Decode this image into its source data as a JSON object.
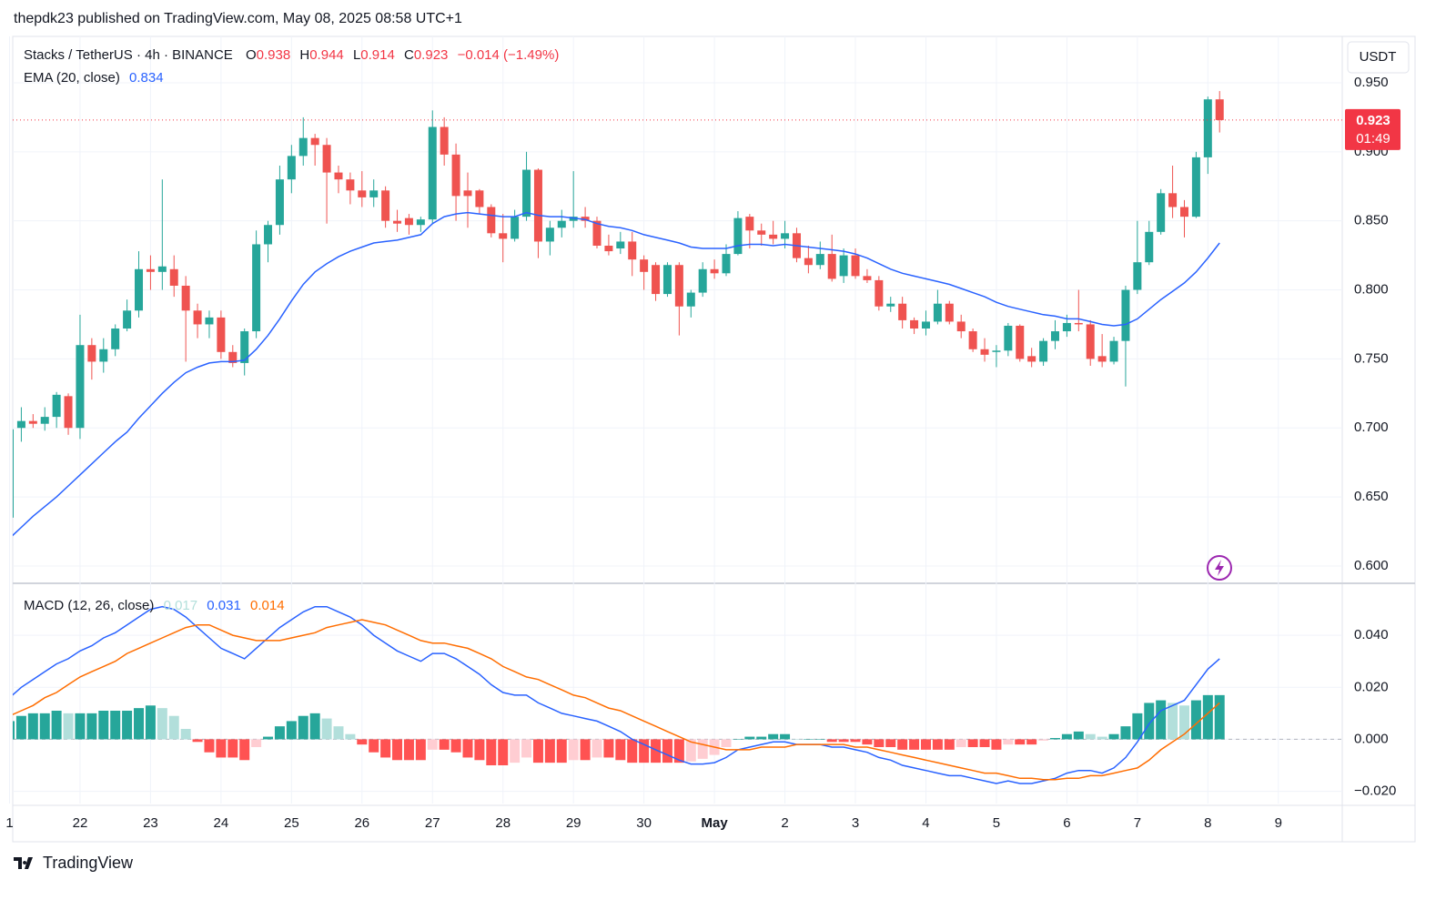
{
  "header": {
    "publisher": "thepdk23 published on TradingView.com, May 08, 2025 08:58 UTC+1"
  },
  "footer": {
    "brand": "TradingView"
  },
  "chart_data": [
    {
      "type": "candlestick",
      "title": "Stacks / TetherUS · 4h · BINANCE",
      "ohlc_keys": [
        "O",
        "H",
        "L",
        "C"
      ],
      "change": "−0.014 (−1.49%)",
      "currency": "USDT",
      "countdown": "01:49",
      "up_color": "#26a69a",
      "down_color": "#ef5350",
      "last_price_color": "#f23645",
      "grid": true,
      "ylim": [
        0.5881,
        0.9836
      ],
      "yticks": [
        {
          "value": 0.95,
          "label": "0.950"
        },
        {
          "value": 0.9,
          "label": "0.900"
        },
        {
          "value": 0.85,
          "label": "0.850"
        },
        {
          "value": 0.8,
          "label": "0.800"
        },
        {
          "value": 0.75,
          "label": "0.750"
        },
        {
          "value": 0.7,
          "label": "0.700"
        },
        {
          "value": 0.65,
          "label": "0.650"
        },
        {
          "value": 0.6,
          "label": "0.600"
        }
      ],
      "categories": [
        "1",
        null,
        null,
        null,
        null,
        null,
        "22",
        null,
        null,
        null,
        null,
        null,
        "23",
        null,
        null,
        null,
        null,
        null,
        "24",
        null,
        null,
        null,
        null,
        null,
        "25",
        null,
        null,
        null,
        null,
        null,
        "26",
        null,
        null,
        null,
        null,
        null,
        "27",
        null,
        null,
        null,
        null,
        null,
        "28",
        null,
        null,
        null,
        null,
        null,
        "29",
        null,
        null,
        null,
        null,
        null,
        "30",
        null,
        null,
        null,
        null,
        null,
        "May",
        null,
        null,
        null,
        null,
        null,
        "2",
        null,
        null,
        null,
        null,
        null,
        "3",
        null,
        null,
        null,
        null,
        null,
        "4",
        null,
        null,
        null,
        null,
        null,
        "5",
        null,
        null,
        null,
        null,
        null,
        "6",
        null,
        null,
        null,
        null,
        null,
        "7",
        null,
        null,
        null,
        null,
        null,
        "8",
        null,
        null,
        null,
        null,
        null,
        "9"
      ],
      "open": [
        0.635,
        0.7,
        0.705,
        0.703,
        0.708,
        0.723,
        0.7,
        0.76,
        0.748,
        0.757,
        0.772,
        0.785,
        0.815,
        0.813,
        0.815,
        0.803,
        0.785,
        0.775,
        0.78,
        0.755,
        0.747,
        0.77,
        0.833,
        0.847,
        0.88,
        0.897,
        0.91,
        0.905,
        0.885,
        0.88,
        0.872,
        0.867,
        0.872,
        0.85,
        0.852,
        0.847,
        0.851,
        0.918,
        0.898,
        0.872,
        0.872,
        0.86,
        0.841,
        0.837,
        0.853,
        0.887,
        0.835,
        0.845,
        0.85,
        0.853,
        0.85,
        0.832,
        0.83,
        0.835,
        0.822,
        0.818,
        0.797,
        0.818,
        0.788,
        0.798,
        0.815,
        0.812,
        0.826,
        0.853,
        0.843,
        0.84,
        0.837,
        0.841,
        0.823,
        0.818,
        0.826,
        0.81,
        0.825,
        0.81,
        0.807,
        0.788,
        0.79,
        0.778,
        0.772,
        0.777,
        0.79,
        0.777,
        0.77,
        0.757,
        0.755,
        0.756,
        0.774,
        0.752,
        0.748,
        0.763,
        0.77,
        0.776,
        0.775,
        0.752,
        0.748,
        0.763,
        0.8,
        0.82,
        0.842,
        0.87,
        0.86,
        0.853,
        0.896,
        0.938,
        null,
        null,
        null,
        null,
        null
      ],
      "high": [
        0.7,
        0.715,
        0.71,
        0.715,
        0.726,
        0.725,
        0.782,
        0.765,
        0.765,
        0.775,
        0.793,
        0.828,
        0.825,
        0.88,
        0.825,
        0.81,
        0.79,
        0.785,
        0.785,
        0.76,
        0.772,
        0.843,
        0.85,
        0.89,
        0.905,
        0.925,
        0.913,
        0.91,
        0.89,
        0.885,
        0.886,
        0.88,
        0.875,
        0.858,
        0.855,
        0.853,
        0.93,
        0.925,
        0.906,
        0.885,
        0.873,
        0.862,
        0.855,
        0.858,
        0.9,
        0.888,
        0.85,
        0.858,
        0.886,
        0.86,
        0.853,
        0.84,
        0.842,
        0.842,
        0.825,
        0.82,
        0.82,
        0.82,
        0.8,
        0.82,
        0.822,
        0.833,
        0.857,
        0.855,
        0.848,
        0.85,
        0.85,
        0.845,
        0.832,
        0.835,
        0.84,
        0.83,
        0.83,
        0.815,
        0.81,
        0.795,
        0.795,
        0.78,
        0.785,
        0.8,
        0.792,
        0.782,
        0.772,
        0.765,
        0.76,
        0.776,
        0.775,
        0.758,
        0.765,
        0.778,
        0.782,
        0.8,
        0.778,
        0.768,
        0.766,
        0.803,
        0.85,
        0.85,
        0.873,
        0.89,
        0.865,
        0.9,
        0.94,
        0.944,
        null,
        null,
        null,
        null,
        null
      ],
      "low": [
        0.633,
        0.69,
        0.7,
        0.698,
        0.7,
        0.695,
        0.692,
        0.735,
        0.74,
        0.752,
        0.77,
        0.78,
        0.8,
        0.8,
        0.795,
        0.748,
        0.765,
        0.765,
        0.75,
        0.744,
        0.738,
        0.765,
        0.82,
        0.84,
        0.87,
        0.89,
        0.89,
        0.848,
        0.87,
        0.862,
        0.86,
        0.86,
        0.845,
        0.842,
        0.84,
        0.842,
        0.848,
        0.89,
        0.85,
        0.845,
        0.855,
        0.838,
        0.82,
        0.835,
        0.85,
        0.823,
        0.825,
        0.838,
        0.845,
        0.845,
        0.83,
        0.825,
        0.826,
        0.81,
        0.8,
        0.792,
        0.795,
        0.767,
        0.78,
        0.795,
        0.808,
        0.81,
        0.825,
        0.83,
        0.832,
        0.833,
        0.83,
        0.82,
        0.812,
        0.815,
        0.806,
        0.805,
        0.808,
        0.805,
        0.785,
        0.784,
        0.772,
        0.768,
        0.767,
        0.775,
        0.775,
        0.765,
        0.755,
        0.748,
        0.744,
        0.752,
        0.748,
        0.744,
        0.745,
        0.757,
        0.766,
        0.77,
        0.745,
        0.744,
        0.746,
        0.73,
        0.797,
        0.818,
        0.84,
        0.852,
        0.838,
        0.852,
        0.884,
        0.914,
        null,
        null,
        null,
        null,
        null
      ],
      "close": [
        0.699,
        0.705,
        0.703,
        0.708,
        0.724,
        0.7,
        0.76,
        0.748,
        0.757,
        0.772,
        0.785,
        0.815,
        0.813,
        0.817,
        0.803,
        0.785,
        0.775,
        0.78,
        0.755,
        0.747,
        0.77,
        0.833,
        0.847,
        0.88,
        0.897,
        0.91,
        0.905,
        0.885,
        0.88,
        0.872,
        0.867,
        0.872,
        0.85,
        0.848,
        0.847,
        0.851,
        0.918,
        0.898,
        0.868,
        0.868,
        0.86,
        0.841,
        0.837,
        0.853,
        0.887,
        0.835,
        0.845,
        0.85,
        0.853,
        0.85,
        0.832,
        0.828,
        0.835,
        0.822,
        0.813,
        0.797,
        0.818,
        0.788,
        0.798,
        0.815,
        0.812,
        0.826,
        0.852,
        0.843,
        0.84,
        0.837,
        0.841,
        0.823,
        0.818,
        0.826,
        0.808,
        0.825,
        0.81,
        0.807,
        0.788,
        0.79,
        0.778,
        0.772,
        0.777,
        0.79,
        0.777,
        0.77,
        0.757,
        0.753,
        0.756,
        0.774,
        0.75,
        0.748,
        0.763,
        0.77,
        0.776,
        0.775,
        0.75,
        0.748,
        0.763,
        0.8,
        0.82,
        0.842,
        0.87,
        0.86,
        0.853,
        0.896,
        0.938,
        0.923,
        null,
        null,
        null,
        null,
        null
      ],
      "series": [
        {
          "name": "EMA (20, close)",
          "color": "#2962ff",
          "values": [
            0.62,
            0.628,
            0.636,
            0.643,
            0.65,
            0.658,
            0.666,
            0.674,
            0.682,
            0.69,
            0.697,
            0.707,
            0.716,
            0.725,
            0.733,
            0.74,
            0.744,
            0.747,
            0.748,
            0.748,
            0.749,
            0.757,
            0.767,
            0.779,
            0.792,
            0.804,
            0.813,
            0.819,
            0.824,
            0.828,
            0.831,
            0.834,
            0.835,
            0.836,
            0.838,
            0.84,
            0.848,
            0.853,
            0.855,
            0.856,
            0.855,
            0.854,
            0.853,
            0.853,
            0.856,
            0.854,
            0.853,
            0.853,
            0.852,
            0.851,
            0.848,
            0.846,
            0.845,
            0.843,
            0.84,
            0.838,
            0.836,
            0.834,
            0.831,
            0.83,
            0.83,
            0.83,
            0.832,
            0.833,
            0.833,
            0.832,
            0.833,
            0.832,
            0.831,
            0.83,
            0.829,
            0.828,
            0.826,
            0.823,
            0.819,
            0.815,
            0.812,
            0.81,
            0.808,
            0.806,
            0.804,
            0.801,
            0.798,
            0.795,
            0.791,
            0.788,
            0.786,
            0.784,
            0.782,
            0.781,
            0.779,
            0.779,
            0.777,
            0.775,
            0.774,
            0.775,
            0.779,
            0.786,
            0.793,
            0.799,
            0.805,
            0.813,
            0.823,
            0.834,
            null,
            null,
            null,
            null,
            null
          ]
        }
      ]
    },
    {
      "type": "macd",
      "title": "MACD (12, 26, close)",
      "ylim": [
        -0.0247,
        0.0593
      ],
      "yticks": [
        {
          "value": 0.04,
          "label": "0.040"
        },
        {
          "value": 0.02,
          "label": "0.020"
        },
        {
          "value": 0,
          "label": "0.000"
        },
        {
          "value": -0.02,
          "label": "−0.020"
        }
      ],
      "histogram": {
        "colors": [
          "#26a69a",
          "#b2dfdb",
          "#ffcdd2",
          "#ff5252"
        ],
        "values": [
          0.007,
          0.009,
          0.01,
          0.01,
          0.011,
          0.01,
          0.01,
          0.01,
          0.011,
          0.011,
          0.011,
          0.012,
          0.013,
          0.012,
          0.009,
          0.004,
          -0.001,
          -0.005,
          -0.007,
          -0.007,
          -0.008,
          -0.003,
          0.001,
          0.005,
          0.007,
          0.009,
          0.01,
          0.008,
          0.005,
          0.002,
          -0.002,
          -0.005,
          -0.007,
          -0.008,
          -0.008,
          -0.008,
          -0.004,
          -0.004,
          -0.005,
          -0.007,
          -0.008,
          -0.01,
          -0.01,
          -0.009,
          -0.007,
          -0.009,
          -0.009,
          -0.009,
          -0.008,
          -0.008,
          -0.007,
          -0.007,
          -0.008,
          -0.009,
          -0.009,
          -0.009,
          -0.009,
          -0.009,
          -0.0085,
          -0.0075,
          -0.006,
          -0.003,
          0.0,
          0.001,
          0.001,
          0.002,
          0.002,
          0.0,
          0.0,
          0.0,
          -0.001,
          -0.001,
          -0.001,
          -0.002,
          -0.003,
          -0.003,
          -0.004,
          -0.004,
          -0.004,
          -0.004,
          -0.004,
          -0.003,
          -0.003,
          -0.003,
          -0.004,
          -0.002,
          -0.002,
          -0.002,
          -0.0005,
          0.0005,
          0.002,
          0.003,
          0.002,
          0.001,
          0.002,
          0.005,
          0.01,
          0.014,
          0.015,
          0.014,
          0.013,
          0.015,
          0.017,
          0.017,
          null,
          null,
          null,
          null,
          null
        ]
      },
      "series": [
        {
          "color": "#2962ff",
          "values": [
            0.016,
            0.02,
            0.023,
            0.026,
            0.029,
            0.031,
            0.034,
            0.036,
            0.039,
            0.041,
            0.044,
            0.047,
            0.05,
            0.051,
            0.05,
            0.047,
            0.043,
            0.039,
            0.035,
            0.033,
            0.031,
            0.035,
            0.039,
            0.043,
            0.046,
            0.049,
            0.051,
            0.051,
            0.049,
            0.047,
            0.044,
            0.04,
            0.037,
            0.034,
            0.032,
            0.03,
            0.033,
            0.033,
            0.031,
            0.028,
            0.025,
            0.021,
            0.018,
            0.017,
            0.017,
            0.014,
            0.012,
            0.01,
            0.009,
            0.008,
            0.007,
            0.005,
            0.003,
            0.0,
            -0.002,
            -0.004,
            -0.006,
            -0.008,
            -0.0095,
            -0.0095,
            -0.009,
            -0.007,
            -0.004,
            -0.003,
            -0.002,
            -0.001,
            -0.001,
            -0.002,
            -0.002,
            -0.002,
            -0.003,
            -0.003,
            -0.004,
            -0.005,
            -0.007,
            -0.008,
            -0.01,
            -0.011,
            -0.012,
            -0.013,
            -0.014,
            -0.014,
            -0.015,
            -0.016,
            -0.017,
            -0.016,
            -0.017,
            -0.017,
            -0.016,
            -0.015,
            -0.013,
            -0.012,
            -0.012,
            -0.013,
            -0.011,
            -0.007,
            -0.001,
            0.006,
            0.011,
            0.013,
            0.015,
            0.021,
            0.027,
            0.031,
            null,
            null,
            null,
            null,
            null
          ]
        },
        {
          "color": "#ff6d00",
          "values": [
            0.009,
            0.011,
            0.013,
            0.016,
            0.018,
            0.021,
            0.024,
            0.026,
            0.028,
            0.03,
            0.033,
            0.035,
            0.037,
            0.039,
            0.041,
            0.043,
            0.044,
            0.044,
            0.042,
            0.04,
            0.039,
            0.038,
            0.038,
            0.038,
            0.039,
            0.04,
            0.041,
            0.043,
            0.044,
            0.045,
            0.046,
            0.045,
            0.044,
            0.042,
            0.04,
            0.038,
            0.037,
            0.037,
            0.036,
            0.035,
            0.033,
            0.031,
            0.028,
            0.026,
            0.024,
            0.023,
            0.021,
            0.019,
            0.017,
            0.016,
            0.014,
            0.012,
            0.011,
            0.009,
            0.007,
            0.005,
            0.003,
            0.001,
            -0.001,
            -0.002,
            -0.003,
            -0.004,
            -0.004,
            -0.004,
            -0.003,
            -0.003,
            -0.003,
            -0.002,
            -0.002,
            -0.002,
            -0.002,
            -0.002,
            -0.003,
            -0.003,
            -0.004,
            -0.005,
            -0.006,
            -0.007,
            -0.008,
            -0.009,
            -0.01,
            -0.011,
            -0.012,
            -0.013,
            -0.013,
            -0.014,
            -0.015,
            -0.015,
            -0.0155,
            -0.0155,
            -0.015,
            -0.015,
            -0.014,
            -0.014,
            -0.013,
            -0.012,
            -0.011,
            -0.008,
            -0.004,
            -0.001,
            0.002,
            0.006,
            0.01,
            0.014,
            null,
            null,
            null,
            null,
            null
          ]
        }
      ]
    }
  ]
}
